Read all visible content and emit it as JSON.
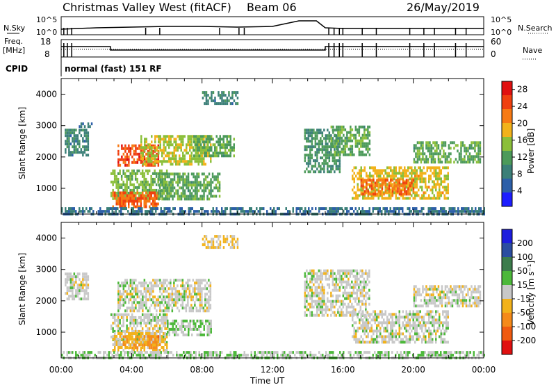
{
  "header": {
    "station": "Christmas Valley West (fitACF)",
    "beam": "Beam 06",
    "date": "26/May/2019"
  },
  "summary_panels": {
    "nsky_label": "N.Sky",
    "nsearch_label": "N.Search",
    "freq_label": "Freq.",
    "freq_unit": "[MHz]",
    "nave_label": "Nave",
    "cpid_label": "CPID",
    "cpid_text": "normal (fast) 151 RF",
    "noise_ticks_left": [
      "10^5",
      "10^0"
    ],
    "noise_ticks_right": [
      "10^5",
      "10^0"
    ],
    "freq_ticks": [
      "18",
      "8"
    ],
    "nave_ticks": [
      "60",
      "0"
    ]
  },
  "axes": {
    "ylabel": "Slant Range [km]",
    "xlabel": "Time UT",
    "yticks": [
      "1000",
      "2000",
      "3000",
      "4000"
    ],
    "xticks": [
      "00:00",
      "04:00",
      "08:00",
      "12:00",
      "16:00",
      "20:00",
      "00:00"
    ]
  },
  "power_colorbar": {
    "label": "Power [dB]",
    "ticks": [
      "4",
      "8",
      "12",
      "16",
      "20",
      "24",
      "28"
    ],
    "colors": [
      "#1d1dff",
      "#2d5fa8",
      "#3b7f78",
      "#4c9a5a",
      "#8bbf3a",
      "#f2b21b",
      "#f77a14",
      "#f04010",
      "#e01010"
    ]
  },
  "velocity_colorbar": {
    "label": "Velocity [m s⁻¹]",
    "ticks": [
      "200",
      "100",
      "50",
      "15",
      "-15",
      "-50",
      "-100",
      "-200"
    ],
    "colors": [
      "#1d1ddd",
      "#2b4da0",
      "#3c7c4c",
      "#4cb83a",
      "#c8c8c8",
      "#f2b21b",
      "#f58a1a",
      "#f05a10",
      "#e01010"
    ]
  },
  "chart_data": {
    "type": "heatmap",
    "title": "Christmas Valley West (fitACF) Beam 06 26/May/2019",
    "xlabel": "Time UT",
    "ylabel": "Slant Range [km]",
    "xlim": [
      0,
      24
    ],
    "ylim": [
      180,
      4500
    ],
    "xtick_hours": [
      0,
      4,
      8,
      12,
      16,
      20,
      24
    ],
    "ytick_km": [
      1000,
      2000,
      3000,
      4000
    ],
    "panels": [
      {
        "name": "Power",
        "unit": "dB",
        "range": [
          0,
          30
        ],
        "regions": [
          {
            "t": [
              0.2,
              1.5
            ],
            "r": [
              2100,
              2900
            ],
            "value": 8
          },
          {
            "t": [
              1.0,
              1.8
            ],
            "r": [
              2950,
              3100
            ],
            "value": 6
          },
          {
            "t": [
              2.8,
              6.0
            ],
            "r": [
              700,
              1600
            ],
            "value": 14
          },
          {
            "t": [
              2.9,
              5.5
            ],
            "r": [
              400,
              900
            ],
            "value": 24
          },
          {
            "t": [
              3.2,
              5.5
            ],
            "r": [
              1700,
              2400
            ],
            "value": 26
          },
          {
            "t": [
              4.5,
              8.5
            ],
            "r": [
              1800,
              2700
            ],
            "value": 16
          },
          {
            "t": [
              7.5,
              9.8
            ],
            "r": [
              2000,
              2700
            ],
            "value": 12
          },
          {
            "t": [
              5.5,
              9.0
            ],
            "r": [
              700,
              1500
            ],
            "value": 12
          },
          {
            "t": [
              8.0,
              10.0
            ],
            "r": [
              3700,
              4100
            ],
            "value": 8
          },
          {
            "t": [
              13.8,
              15.8
            ],
            "r": [
              1500,
              2900
            ],
            "value": 10
          },
          {
            "t": [
              15.3,
              17.5
            ],
            "r": [
              2100,
              3000
            ],
            "value": 12
          },
          {
            "t": [
              16.5,
              22.0
            ],
            "r": [
              700,
              1700
            ],
            "value": 18
          },
          {
            "t": [
              17.0,
              20.0
            ],
            "r": [
              800,
              1300
            ],
            "value": 24
          },
          {
            "t": [
              20.0,
              23.8
            ],
            "r": [
              1800,
              2500
            ],
            "value": 12
          },
          {
            "t": [
              0.0,
              24.0
            ],
            "r": [
              180,
              400
            ],
            "value": 6
          }
        ]
      },
      {
        "name": "Velocity",
        "unit": "m s-1",
        "range": [
          -200,
          200
        ],
        "regions": [
          {
            "t": [
              0.2,
              1.5
            ],
            "r": [
              2100,
              2900
            ],
            "value": 0
          },
          {
            "t": [
              2.8,
              6.0
            ],
            "r": [
              700,
              1600
            ],
            "value": 0
          },
          {
            "t": [
              2.9,
              6.0
            ],
            "r": [
              400,
              1000
            ],
            "value": -40
          },
          {
            "t": [
              3.5,
              5.5
            ],
            "r": [
              500,
              900
            ],
            "value": -90
          },
          {
            "t": [
              3.2,
              8.5
            ],
            "r": [
              1700,
              2700
            ],
            "value": 0
          },
          {
            "t": [
              6.0,
              8.5
            ],
            "r": [
              900,
              1400
            ],
            "value": 30
          },
          {
            "t": [
              8.0,
              10.0
            ],
            "r": [
              3700,
              4100
            ],
            "value": -30
          },
          {
            "t": [
              13.8,
              17.5
            ],
            "r": [
              1500,
              3000
            ],
            "value": 0
          },
          {
            "t": [
              16.5,
              22.0
            ],
            "r": [
              700,
              1700
            ],
            "value": 0
          },
          {
            "t": [
              20.0,
              23.8
            ],
            "r": [
              1800,
              2500
            ],
            "value": 0
          },
          {
            "t": [
              0.0,
              24.0
            ],
            "r": [
              180,
              400
            ],
            "value": 20
          }
        ]
      }
    ],
    "noise_sky_trace": {
      "t": [
        0,
        2,
        4,
        6,
        8,
        10,
        12,
        13.5,
        14.5,
        15,
        16,
        20,
        24
      ],
      "level": [
        0.3,
        0.4,
        0.45,
        0.5,
        0.5,
        0.45,
        0.5,
        0.9,
        0.9,
        0.4,
        0.35,
        0.35,
        0.35
      ]
    },
    "frequency_trace": {
      "t": [
        0,
        2.8,
        2.8,
        15,
        15,
        24
      ],
      "mhz": [
        14.5,
        14.5,
        12,
        12,
        14.5,
        14.5
      ]
    }
  }
}
